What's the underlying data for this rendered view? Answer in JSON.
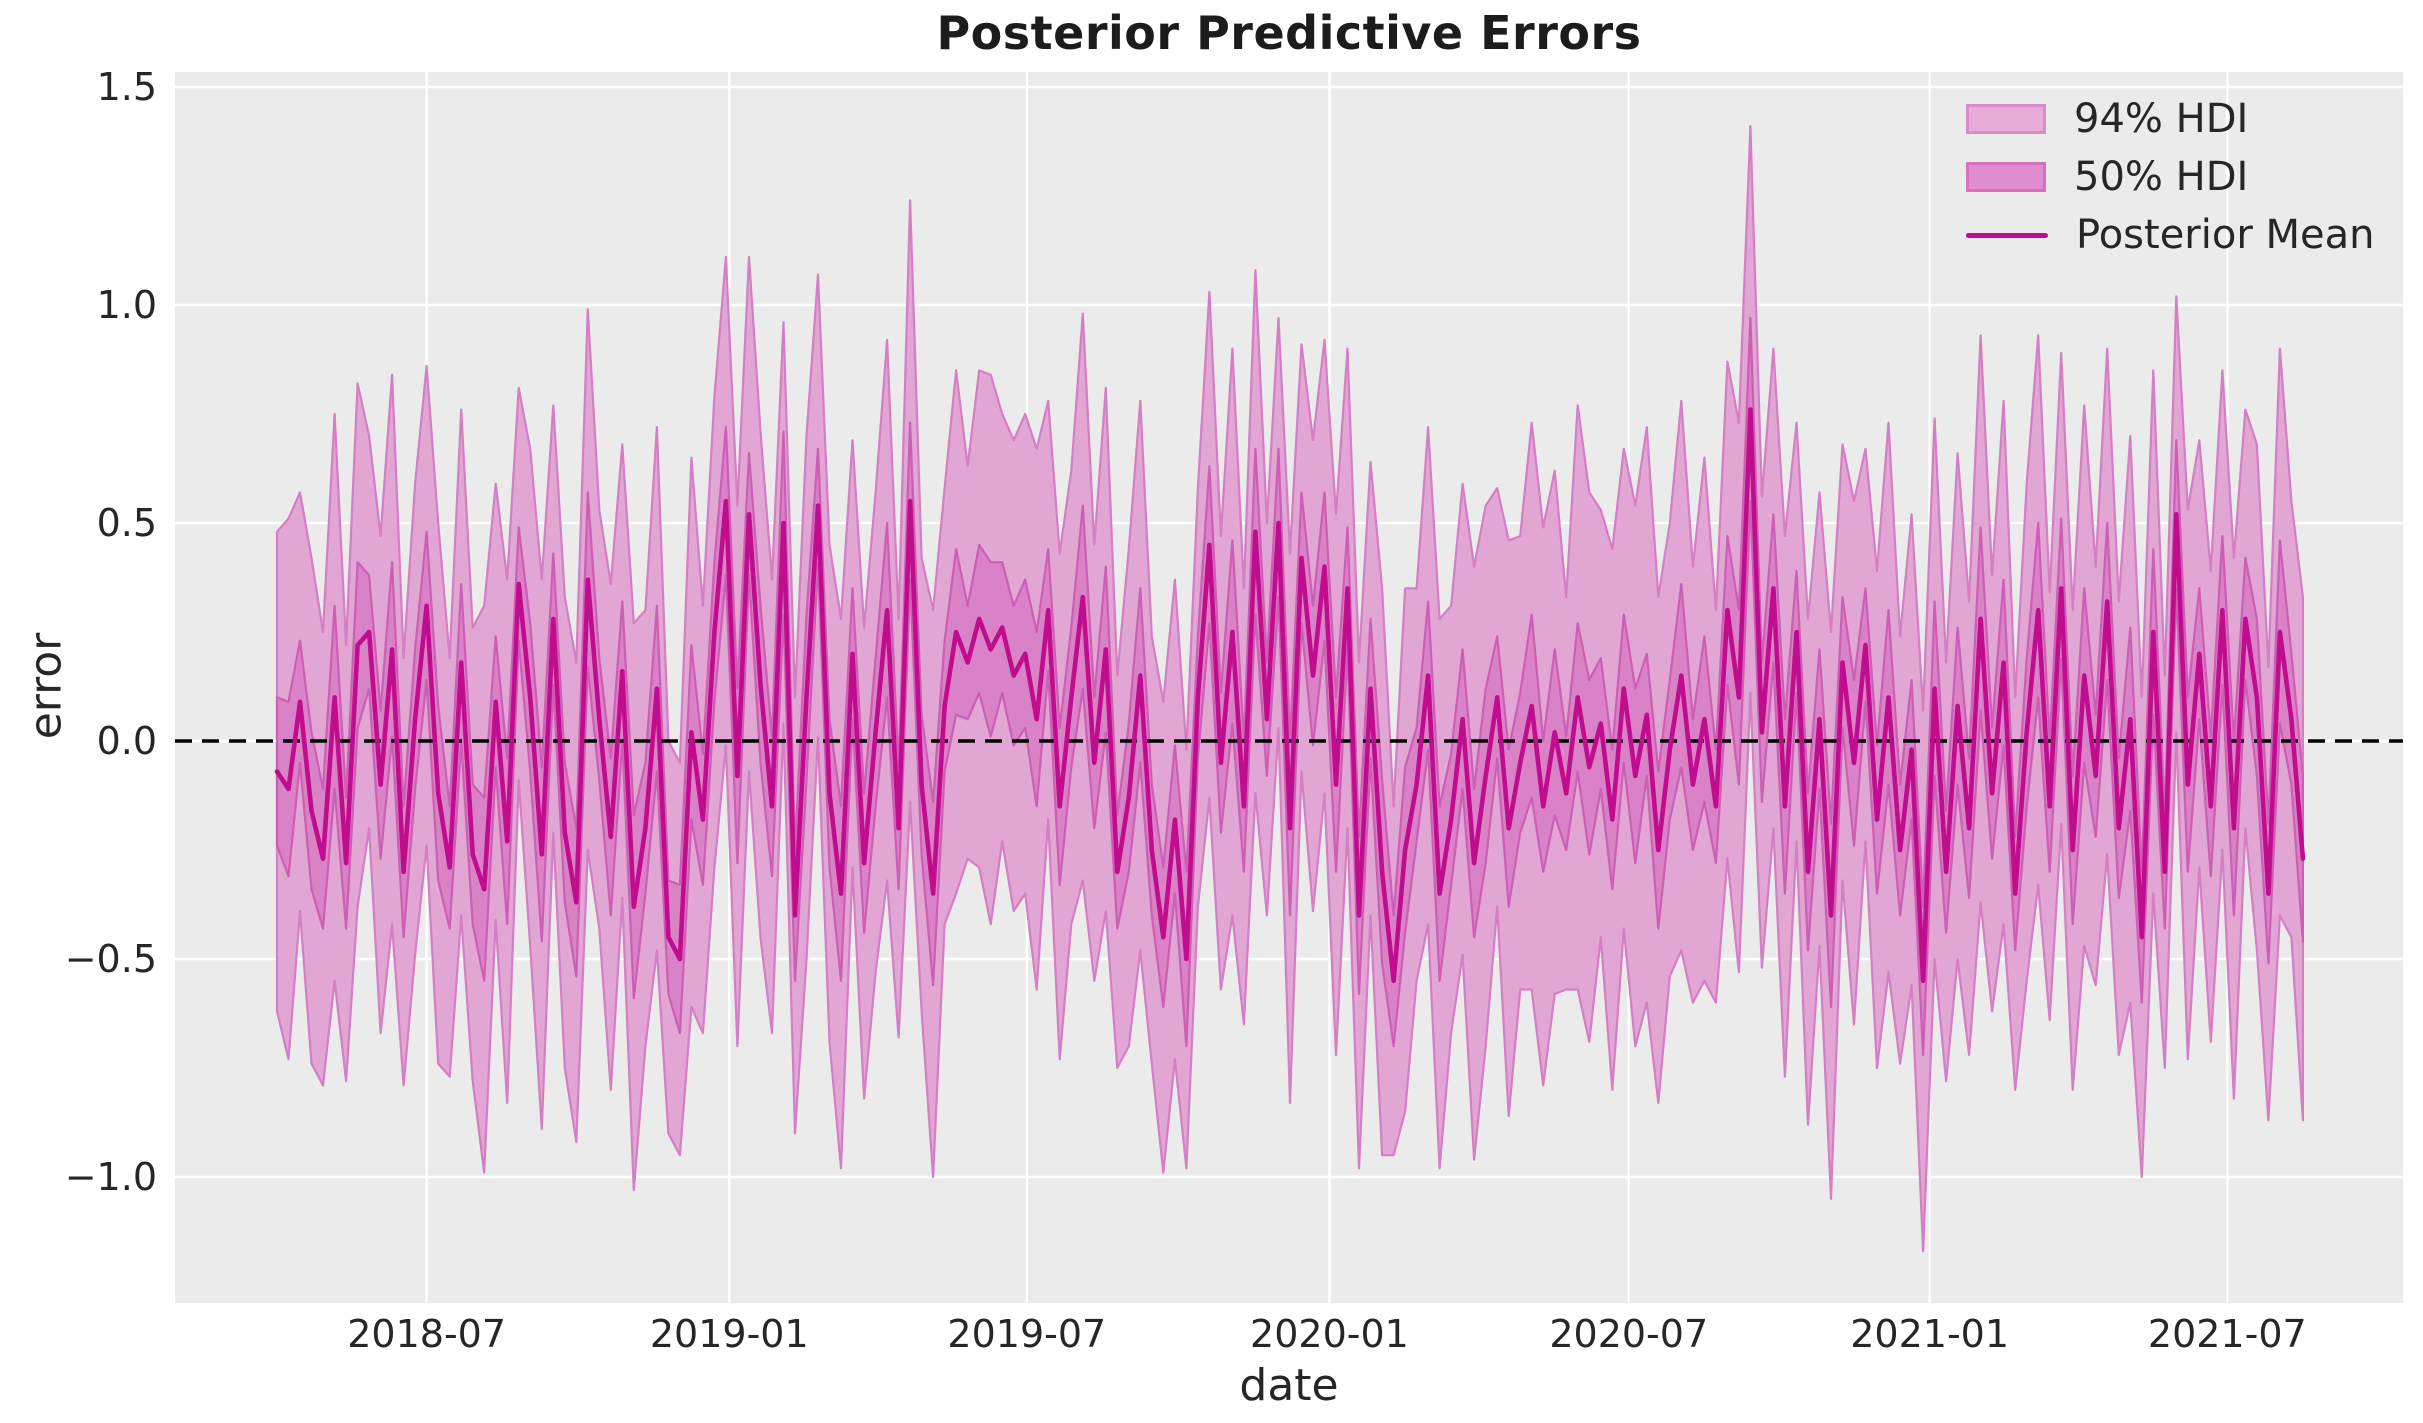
{
  "figure": {
    "title": "Posterior Predictive Errors"
  },
  "axes": {
    "xlabel": "date",
    "ylabel": "error",
    "x_tick_labels": [
      "2018-07",
      "2019-01",
      "2019-07",
      "2020-01",
      "2020-07",
      "2021-01",
      "2021-07"
    ],
    "y_tick_labels": [
      "1.5",
      "1.0",
      "0.5",
      "0.0",
      "−0.5",
      "−1.0"
    ]
  },
  "colors": {
    "figure_background": "#ffffff",
    "plot_background": "#ebebeb",
    "gridline": "#ffffff",
    "hdi94_fill": "#e2a6d4",
    "hdi94_edge": "#d47fc4",
    "hdi50_fill": "#da82c7",
    "hdi50_edge": "#cc5fb5",
    "posterior_mean": "#c00d8e",
    "zero_line": "#000000",
    "text": "#262626"
  },
  "legend": {
    "entries": [
      {
        "label": "94% HDI",
        "swatch": "patch",
        "fill": "#e7abd8",
        "edge": "#d98cc9"
      },
      {
        "label": "50% HDI",
        "swatch": "patch",
        "fill": "#e08cce",
        "edge": "#d671bf"
      },
      {
        "label": "Posterior Mean",
        "swatch": "line",
        "color": "#c00d8e"
      }
    ]
  },
  "chart_data": {
    "type": "line",
    "title": "Posterior Predictive Errors",
    "xlabel": "date",
    "ylabel": "error",
    "x_start_date": "2018-04-01",
    "x_step": "1 week",
    "n_points": 177,
    "x_tick_labels": [
      "2018-07",
      "2019-01",
      "2019-07",
      "2020-01",
      "2020-07",
      "2021-01",
      "2021-07"
    ],
    "y_ticks": [
      -1.0,
      -0.5,
      0.0,
      0.5,
      1.0,
      1.5
    ],
    "ylim": [
      -1.29,
      1.54
    ],
    "zero_reference_line": 0.0,
    "grid": true,
    "legend_position": "upper right",
    "series": [
      {
        "name": "Posterior Mean",
        "type": "line",
        "values": [
          -0.07,
          -0.11,
          0.09,
          -0.16,
          -0.27,
          0.1,
          -0.28,
          0.22,
          0.25,
          -0.1,
          0.21,
          -0.3,
          0.05,
          0.31,
          -0.12,
          -0.29,
          0.18,
          -0.26,
          -0.34,
          0.09,
          -0.23,
          0.36,
          0.1,
          -0.26,
          0.28,
          -0.21,
          -0.37,
          0.37,
          0.05,
          -0.22,
          0.16,
          -0.38,
          -0.2,
          0.12,
          -0.45,
          -0.5,
          0.02,
          -0.18,
          0.25,
          0.55,
          -0.08,
          0.52,
          0.13,
          -0.15,
          0.5,
          -0.4,
          0.1,
          0.54,
          -0.12,
          -0.35,
          0.2,
          -0.28,
          0.02,
          0.3,
          -0.2,
          0.55,
          -0.1,
          -0.35,
          0.08,
          0.25,
          0.18,
          0.28,
          0.21,
          0.26,
          0.15,
          0.2,
          0.05,
          0.3,
          -0.15,
          0.1,
          0.33,
          -0.05,
          0.21,
          -0.3,
          -0.13,
          0.15,
          -0.25,
          -0.45,
          -0.18,
          -0.5,
          0.1,
          0.45,
          -0.05,
          0.25,
          -0.15,
          0.48,
          0.05,
          0.5,
          -0.2,
          0.42,
          0.15,
          0.4,
          -0.1,
          0.35,
          -0.4,
          0.12,
          -0.3,
          -0.55,
          -0.25,
          -0.1,
          0.15,
          -0.35,
          -0.18,
          0.05,
          -0.28,
          -0.08,
          0.1,
          -0.2,
          -0.05,
          0.08,
          -0.15,
          0.02,
          -0.12,
          0.1,
          -0.06,
          0.04,
          -0.18,
          0.12,
          -0.08,
          0.06,
          -0.25,
          -0.02,
          0.15,
          -0.1,
          0.05,
          -0.15,
          0.3,
          0.1,
          0.76,
          0.02,
          0.35,
          -0.15,
          0.25,
          -0.3,
          0.05,
          -0.4,
          0.18,
          -0.05,
          0.22,
          -0.18,
          0.1,
          -0.25,
          -0.02,
          -0.55,
          0.12,
          -0.3,
          0.08,
          -0.2,
          0.28,
          -0.12,
          0.18,
          -0.35,
          0.02,
          0.3,
          -0.15,
          0.35,
          -0.25,
          0.15,
          -0.08,
          0.32,
          -0.2,
          0.05,
          -0.45,
          0.25,
          -0.3,
          0.52,
          -0.1,
          0.2,
          -0.15,
          0.3,
          -0.2,
          0.28,
          0.1,
          -0.35,
          0.25,
          0.05,
          -0.27
        ]
      },
      {
        "name": "94% HDI",
        "type": "band",
        "halfwidths": [
          0.55,
          0.62,
          0.48,
          0.58,
          0.52,
          0.65,
          0.5,
          0.6,
          0.45,
          0.57,
          0.63,
          0.49,
          0.54,
          0.55,
          0.62,
          0.48,
          0.58,
          0.52,
          0.65,
          0.5,
          0.6,
          0.45,
          0.57,
          0.63,
          0.49,
          0.54,
          0.55,
          0.62,
          0.48,
          0.58,
          0.52,
          0.65,
          0.5,
          0.6,
          0.45,
          0.45,
          0.63,
          0.49,
          0.54,
          0.56,
          0.62,
          0.59,
          0.58,
          0.52,
          0.46,
          0.5,
          0.6,
          0.53,
          0.57,
          0.63,
          0.49,
          0.54,
          0.55,
          0.62,
          0.48,
          0.69,
          0.52,
          0.65,
          0.5,
          0.6,
          0.45,
          0.57,
          0.63,
          0.49,
          0.54,
          0.55,
          0.62,
          0.48,
          0.58,
          0.52,
          0.65,
          0.5,
          0.6,
          0.45,
          0.57,
          0.63,
          0.49,
          0.54,
          0.55,
          0.48,
          0.48,
          0.58,
          0.52,
          0.65,
          0.5,
          0.6,
          0.45,
          0.47,
          0.63,
          0.49,
          0.54,
          0.52,
          0.62,
          0.55,
          0.58,
          0.52,
          0.65,
          0.4,
          0.6,
          0.45,
          0.57,
          0.63,
          0.49,
          0.54,
          0.68,
          0.62,
          0.48,
          0.66,
          0.52,
          0.65,
          0.64,
          0.6,
          0.45,
          0.67,
          0.63,
          0.49,
          0.62,
          0.55,
          0.62,
          0.66,
          0.58,
          0.52,
          0.63,
          0.5,
          0.6,
          0.45,
          0.57,
          0.63,
          0.65,
          0.54,
          0.55,
          0.62,
          0.48,
          0.58,
          0.52,
          0.65,
          0.5,
          0.6,
          0.45,
          0.57,
          0.63,
          0.49,
          0.54,
          0.62,
          0.62,
          0.48,
          0.58,
          0.52,
          0.65,
          0.5,
          0.6,
          0.45,
          0.57,
          0.63,
          0.49,
          0.54,
          0.55,
          0.62,
          0.48,
          0.58,
          0.52,
          0.65,
          0.55,
          0.6,
          0.45,
          0.5,
          0.63,
          0.49,
          0.54,
          0.55,
          0.62,
          0.48,
          0.58,
          0.52,
          0.65,
          0.5,
          0.6
        ]
      },
      {
        "name": "50% HDI",
        "type": "band",
        "halfwidths": [
          0.17,
          0.2,
          0.14,
          0.18,
          0.16,
          0.21,
          0.15,
          0.19,
          0.13,
          0.17,
          0.2,
          0.15,
          0.16,
          0.17,
          0.2,
          0.14,
          0.18,
          0.16,
          0.21,
          0.15,
          0.19,
          0.13,
          0.17,
          0.2,
          0.15,
          0.16,
          0.17,
          0.2,
          0.14,
          0.18,
          0.16,
          0.21,
          0.15,
          0.19,
          0.13,
          0.17,
          0.2,
          0.15,
          0.16,
          0.17,
          0.2,
          0.14,
          0.18,
          0.16,
          0.21,
          0.15,
          0.19,
          0.13,
          0.17,
          0.2,
          0.15,
          0.16,
          0.17,
          0.2,
          0.14,
          0.18,
          0.16,
          0.21,
          0.15,
          0.19,
          0.13,
          0.17,
          0.2,
          0.15,
          0.16,
          0.17,
          0.2,
          0.14,
          0.18,
          0.16,
          0.21,
          0.15,
          0.19,
          0.13,
          0.17,
          0.2,
          0.15,
          0.16,
          0.17,
          0.2,
          0.14,
          0.18,
          0.16,
          0.21,
          0.15,
          0.19,
          0.13,
          0.17,
          0.2,
          0.15,
          0.16,
          0.17,
          0.2,
          0.14,
          0.18,
          0.16,
          0.21,
          0.15,
          0.19,
          0.13,
          0.17,
          0.2,
          0.15,
          0.16,
          0.17,
          0.2,
          0.14,
          0.18,
          0.16,
          0.21,
          0.15,
          0.19,
          0.13,
          0.17,
          0.2,
          0.15,
          0.16,
          0.17,
          0.2,
          0.14,
          0.18,
          0.16,
          0.21,
          0.15,
          0.19,
          0.13,
          0.17,
          0.2,
          0.21,
          0.16,
          0.17,
          0.2,
          0.14,
          0.18,
          0.16,
          0.21,
          0.15,
          0.19,
          0.13,
          0.17,
          0.2,
          0.15,
          0.16,
          0.17,
          0.2,
          0.14,
          0.18,
          0.16,
          0.21,
          0.15,
          0.19,
          0.13,
          0.17,
          0.2,
          0.15,
          0.16,
          0.17,
          0.2,
          0.14,
          0.18,
          0.16,
          0.21,
          0.15,
          0.19,
          0.13,
          0.17,
          0.2,
          0.15,
          0.16,
          0.17,
          0.2,
          0.14,
          0.18,
          0.16,
          0.21,
          0.15,
          0.19
        ]
      }
    ]
  }
}
